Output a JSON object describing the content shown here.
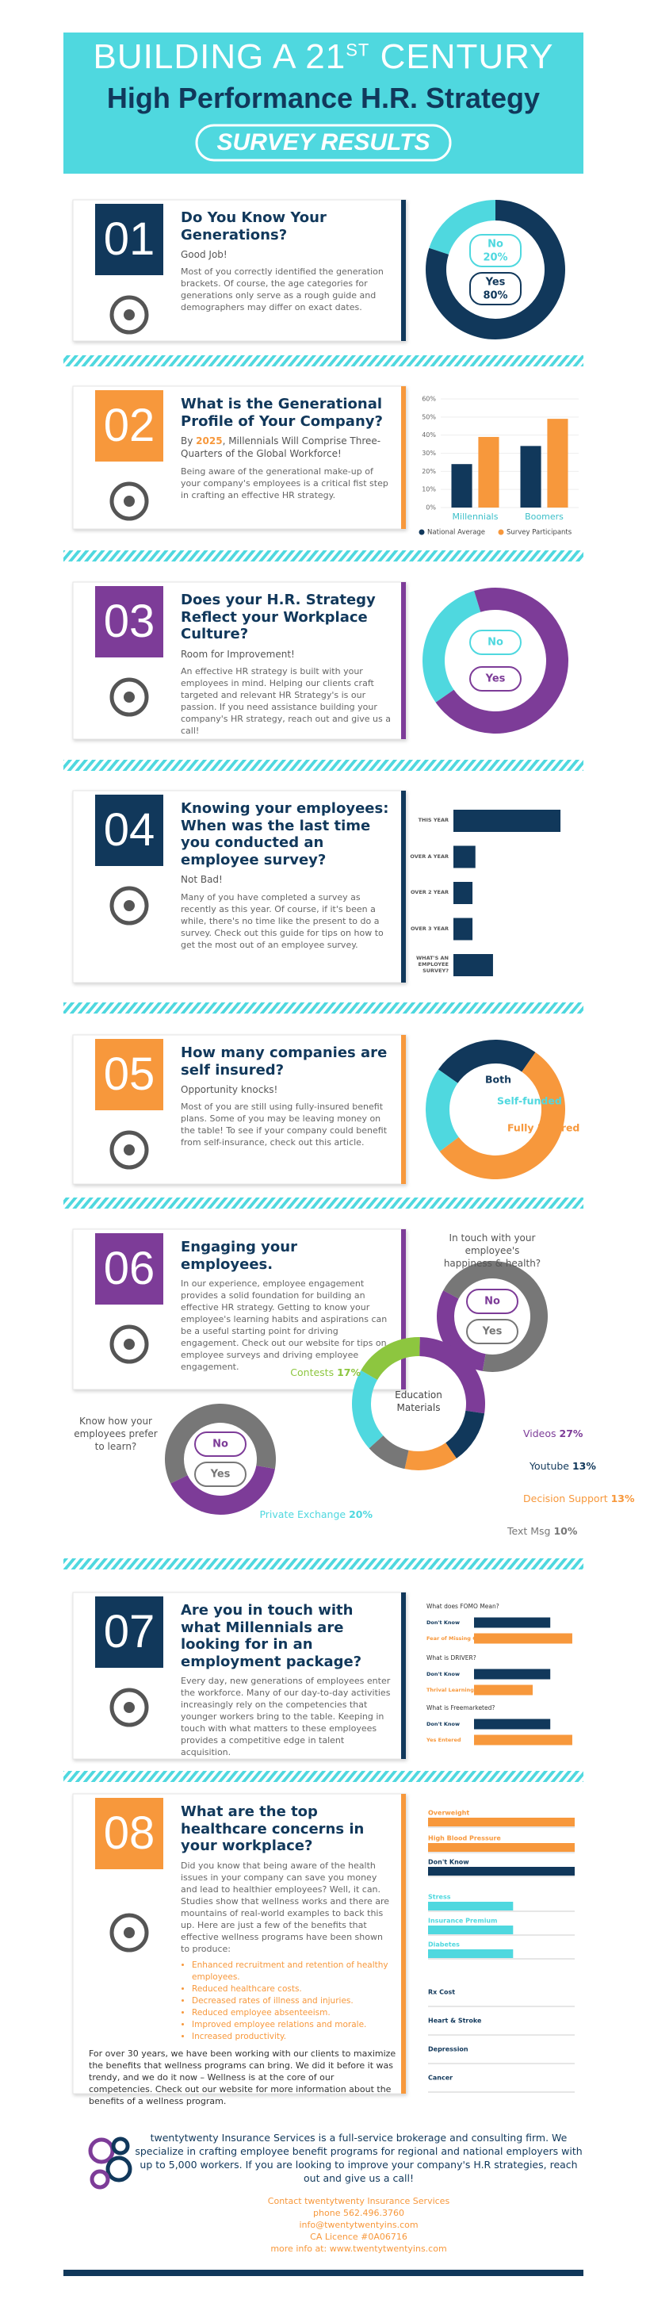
{
  "header": {
    "title_start": "BUILDING A 21",
    "title_sup": "ST",
    "title_end": "CENTURY",
    "subtitle": "High Performance H.R. Strategy",
    "badge": "SURVEY RESULTS"
  },
  "sections": [
    {
      "number": "01",
      "color": "#11385b",
      "title": "Do You Know Your Generations?",
      "lead": "Good Job!",
      "body": "Most of you correctly identified the generation brackets. Of course, the age categories for generations only serve as a rough guide and demographers may differ on exact dates.",
      "charts": [
        {
          "type": "donut",
          "categories": [
            "No",
            "Yes"
          ],
          "values": [
            20,
            80
          ],
          "value_labels": [
            "20%",
            "80%"
          ],
          "colors": [
            "#4fd8df",
            "#11385b"
          ]
        }
      ]
    },
    {
      "number": "02",
      "color": "#f7983c",
      "title": "What is the Generational Profile of Your Company?",
      "lead": [
        "By ",
        "2025",
        ", Millennials Will Comprise Three-Quarters of the Global Workforce!"
      ],
      "body": "Being aware of the generational make-up of your company's employees is a critical fist step in crafting an effective HR strategy.",
      "charts": [
        {
          "type": "bar",
          "categories": [
            "Millennials",
            "Boomers"
          ],
          "series": [
            {
              "name": "National Average",
              "color": "#11385b",
              "values": [
                24,
                34
              ]
            },
            {
              "name": "Survey Participants",
              "color": "#f7983c",
              "values": [
                39,
                49
              ]
            }
          ],
          "ylim": [
            0,
            60
          ],
          "yticks": [
            {
              "value": 0,
              "label": "0%"
            },
            {
              "value": 10,
              "label": "10%"
            },
            {
              "value": 20,
              "label": "20%"
            },
            {
              "value": 30,
              "label": "30%"
            },
            {
              "value": 40,
              "label": "40%"
            },
            {
              "value": 50,
              "label": "50%"
            },
            {
              "value": 60,
              "label": "60%"
            }
          ],
          "grid": true
        }
      ]
    },
    {
      "number": "03",
      "color": "#7d3c98",
      "title": "Does your H.R. Strategy Reflect your Workplace Culture?",
      "lead": "Room for Improvement!",
      "body": "An effective HR strategy is built with your employees in mind. Helping our clients craft targeted and relevant HR Strategy's is our passion. If you need assistance building your company's HR strategy, reach out and give us a call!",
      "charts": [
        {
          "type": "donut",
          "categories": [
            "No",
            "Yes"
          ],
          "values": [
            30,
            70
          ],
          "colors": [
            "#4fd8df",
            "#7d3c98"
          ]
        }
      ]
    },
    {
      "number": "04",
      "color": "#11385b",
      "title": "Knowing your employees: When was the last time you conducted an employee survey?",
      "lead": "Not Bad!",
      "body": "Many of you have completed a survey as recently as this year. Of course, if it's been a while, there's no time like the present to do a survey. Check out this guide for tips on how to get the most out of an employee survey.",
      "charts": [
        {
          "type": "hbar",
          "categories": [
            "THIS YEAR",
            "OVER A YEAR",
            "OVER 2 YEAR",
            "OVER 3 YEAR",
            "WHAT'S AN EMPLOYEE SURVEY?"
          ],
          "values": [
            73,
            15,
            13,
            13,
            27
          ],
          "color": "#11385b"
        }
      ]
    },
    {
      "number": "05",
      "color": "#f7983c",
      "title": "How many companies are self insured?",
      "lead": "Opportunity knocks!",
      "body": "Most of you are still using fully-insured benefit plans. Some of you may be leaving money on the table! To see if your company could benefit from self-insurance, check out this article.",
      "charts": [
        {
          "type": "donut",
          "categories": [
            "Both",
            "Self-funded",
            "Fully Insured"
          ],
          "values": [
            25,
            20,
            55
          ],
          "colors": [
            "#11385b",
            "#4fd8df",
            "#f7983c"
          ]
        }
      ]
    },
    {
      "number": "06",
      "color": "#7d3c98",
      "title": "Engaging your employees.",
      "body": "In our experience, employee engagement provides a solid foundation for building an effective HR strategy. Getting to know your employee's learning habits and aspirations can be a useful starting point for driving engagement. Check out our website for tips on employee surveys and driving employee engagement.",
      "charts": [
        {
          "type": "donut",
          "title": "In touch with your employee's happiness & health?",
          "categories": [
            "No",
            "Yes"
          ],
          "values": [
            30,
            70
          ],
          "colors": [
            "#7d3c98",
            "#777777"
          ]
        },
        {
          "type": "donut",
          "title": "Know how your employees prefer to learn?",
          "categories": [
            "No",
            "Yes"
          ],
          "values": [
            40,
            60
          ],
          "colors": [
            "#7d3c98",
            "#777777"
          ]
        },
        {
          "type": "donut",
          "center_label": "Education Materials",
          "categories": [
            "Contests",
            "Videos",
            "Youtube",
            "Decision Support",
            "Text Msg",
            "Private Exchange"
          ],
          "values": [
            17,
            27,
            13,
            13,
            10,
            20
          ],
          "value_labels": [
            "17%",
            "27%",
            "13%",
            "13%",
            "10%",
            "20%"
          ],
          "colors": [
            "#8dc63f",
            "#7d3c98",
            "#11385b",
            "#f7983c",
            "#777777",
            "#4fd8df"
          ]
        }
      ]
    },
    {
      "number": "07",
      "color": "#11385b",
      "title": "Are you in touch with what Millennials are looking for in an employment package?",
      "body": "Every day, new generations of employees enter the workforce. Many of our day-to-day activities increasingly rely on the competencies that younger workers bring to the table. Keeping in touch with what matters to these employees provides a competitive edge in talent acquisition.",
      "charts": [
        {
          "type": "qbars",
          "colors": [
            "#11385b",
            "#f7983c"
          ],
          "groups": [
            {
              "question": "What does FOMO Mean?",
              "categories": [
                "Don't Know",
                "Fear of Missing Out"
              ],
              "values": [
                52,
                67
              ]
            },
            {
              "question": "What is DRIVER?",
              "categories": [
                "Don't Know",
                "Thrival Learning"
              ],
              "values": [
                52,
                40
              ]
            },
            {
              "question": "What is Freemarketed?",
              "categories": [
                "Don't Know",
                "Yes Entered"
              ],
              "values": [
                52,
                67
              ]
            }
          ]
        }
      ]
    },
    {
      "number": "08",
      "color": "#f7983c",
      "title": "What are the top healthcare concerns in your workplace?",
      "body": "Did you know that being aware of the health issues in your company can save you money and lead to healthier employees? Well, it can. Studies show that wellness works and there are mountains of real-world examples to back this up. Here are just a few of the benefits that effective wellness programs have been shown to produce:",
      "bullets": [
        "Enhanced recruitment and retention of healthy employees.",
        "Reduced healthcare costs.",
        "Decreased rates of illness and injuries.",
        "Reduced employee absenteeism.",
        "Improved employee relations and morale.",
        "Increased productivity."
      ],
      "closing": "For over 30 years, we have been working with our clients to maximize the benefits that wellness programs can bring. We did it before it was trendy, and we do it now – Wellness is at the core of our competencies. Check out our website for more information about the benefits of a wellness program.",
      "charts": [
        {
          "type": "groups",
          "groups": [
            {
              "categories": [
                "Overweight",
                "High Blood Pressure",
                "Don't Know"
              ],
              "values": [
                100,
                100,
                100
              ],
              "colors": [
                "#f7983c",
                "#f7983c",
                "#11385b"
              ]
            },
            {
              "categories": [
                "Stress",
                "Insurance Premium",
                "Diabetes"
              ],
              "values": [
                58,
                58,
                58
              ],
              "colors": [
                "#4fd8df",
                "#4fd8df",
                "#4fd8df"
              ]
            },
            {
              "categories": [
                "Rx Cost",
                "Heart & Stroke",
                "Depression",
                "Cancer"
              ],
              "values": [
                0,
                0,
                0,
                0
              ],
              "colors": [
                "#11385b",
                "#11385b",
                "#11385b",
                "#11385b"
              ]
            }
          ]
        }
      ]
    }
  ],
  "footer": {
    "about": "twentytwenty Insurance Services is a full-service brokerage and consulting firm. We specialize in crafting employee benefit programs for regional and national employers with up to 5,000 workers. If you are looking to improve your company's H.R strategies, reach out and give us a call!",
    "contact": [
      "Contact twentytwenty Insurance Services",
      "phone 562.496.3760",
      "info@twentytwentyins.com",
      "CA Licence #0A06716",
      "more info at: www.twentytwentyins.com"
    ]
  }
}
